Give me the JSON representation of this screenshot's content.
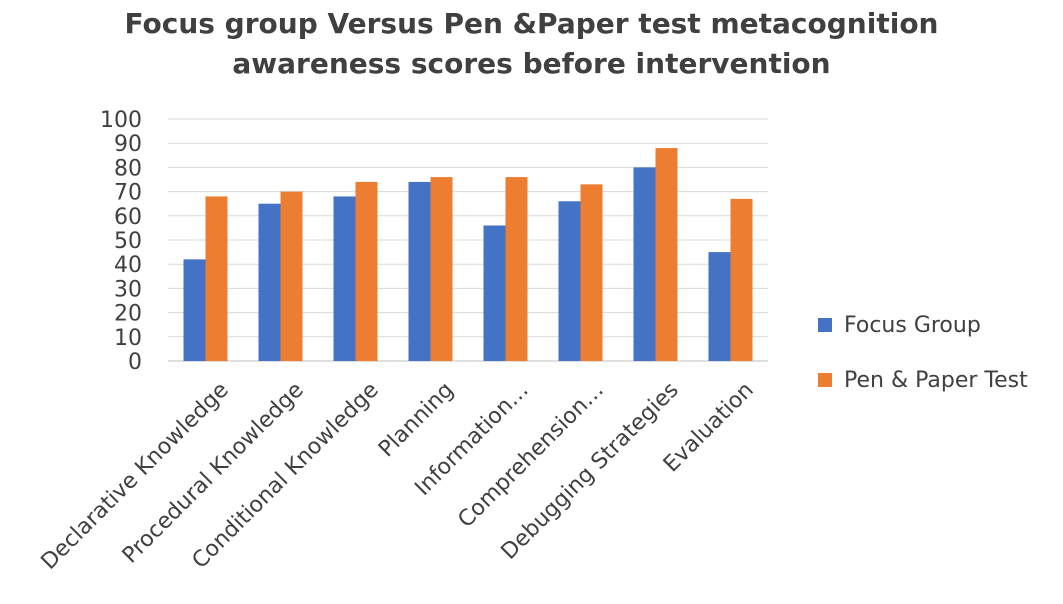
{
  "chart_data": {
    "type": "bar",
    "title": [
      "Focus group Versus Pen &Paper test metacognition",
      "awareness scores before intervention"
    ],
    "categories": [
      "Declarative Knowledge",
      "Procedural Knowledge",
      "Conditional Knowledge",
      "Planning",
      "Information…",
      "Comprehension…",
      "Debugging Strategies",
      "Evaluation"
    ],
    "series": [
      {
        "name": "Focus Group",
        "color": "#4472c4",
        "values": [
          42,
          65,
          68,
          74,
          56,
          66,
          80,
          45
        ]
      },
      {
        "name": "Pen & Paper Test",
        "color": "#ed7d31",
        "values": [
          68,
          70,
          74,
          76,
          76,
          73,
          88,
          67
        ]
      }
    ],
    "ylim": [
      0,
      100
    ],
    "yticks": [
      0,
      10,
      20,
      30,
      40,
      50,
      60,
      70,
      80,
      90,
      100
    ],
    "grid": true,
    "legend_position": "right"
  }
}
